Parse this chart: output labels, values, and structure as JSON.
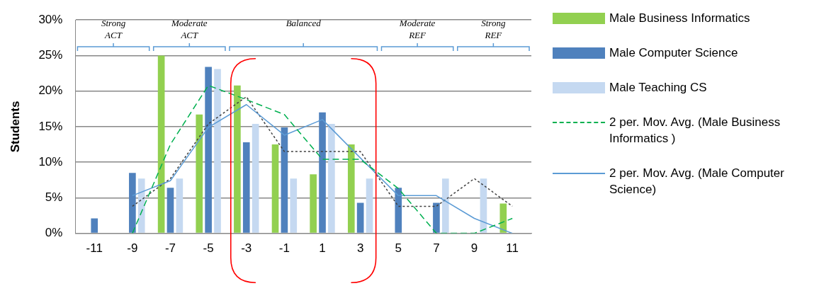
{
  "chart_data": {
    "type": "bar",
    "ylabel": "Students",
    "categories": [
      "-11",
      "-9",
      "-7",
      "-5",
      "-3",
      "-1",
      "1",
      "3",
      "5",
      "7",
      "9",
      "11"
    ],
    "series": [
      {
        "name": "Male Business Informatics",
        "color": "#92d050",
        "values": [
          0,
          0,
          25,
          16.7,
          20.8,
          12.5,
          8.3,
          12.5,
          0,
          0,
          0,
          4.2
        ]
      },
      {
        "name": "Male Computer Science",
        "color": "#4f81bd",
        "values": [
          2.1,
          8.5,
          6.4,
          23.4,
          12.8,
          14.9,
          17.0,
          4.3,
          6.4,
          4.3,
          0,
          0
        ]
      },
      {
        "name": "Male Teaching CS",
        "color": "#c5d9f1",
        "values": [
          0,
          7.7,
          7.7,
          23.1,
          15.4,
          7.7,
          15.4,
          7.7,
          0,
          7.7,
          7.7,
          0
        ]
      },
      {
        "name": "2 per. Mov. Avg. (Male Business Informatics )",
        "type": "line",
        "color": "#00b050",
        "line_style": "dashed",
        "values": [
          null,
          0,
          12.5,
          20.8,
          18.8,
          16.7,
          10.4,
          10.4,
          6.3,
          0,
          0,
          2.1
        ]
      },
      {
        "name": "2 per. Mov. Avg. (Male Computer Science)",
        "type": "line",
        "color": "#5b9bd5",
        "line_style": "solid",
        "values": [
          null,
          5.3,
          7.4,
          14.9,
          18.1,
          13.8,
          16.0,
          10.6,
          5.3,
          5.3,
          2.1,
          0
        ]
      },
      {
        "type": "line",
        "color": "#404040",
        "line_style": "dotted",
        "values": [
          null,
          3.8,
          7.7,
          15.4,
          19.2,
          11.5,
          11.5,
          11.5,
          3.8,
          3.8,
          7.7,
          3.8
        ]
      }
    ],
    "ylim": [
      0,
      30
    ],
    "yticks": [
      {
        "value": 0,
        "label": "0%"
      },
      {
        "value": 5,
        "label": "5%"
      },
      {
        "value": 10,
        "label": "10%"
      },
      {
        "value": 15,
        "label": "15%"
      },
      {
        "value": 20,
        "label": "20%"
      },
      {
        "value": 25,
        "label": "25%"
      },
      {
        "value": 30,
        "label": "30%"
      }
    ],
    "grid": "y",
    "legend": "right",
    "marker": "none",
    "annotations": [
      "Strong ACT",
      "Moderate ACT",
      "Balanced",
      "Moderate REF",
      "Strong REF"
    ]
  }
}
